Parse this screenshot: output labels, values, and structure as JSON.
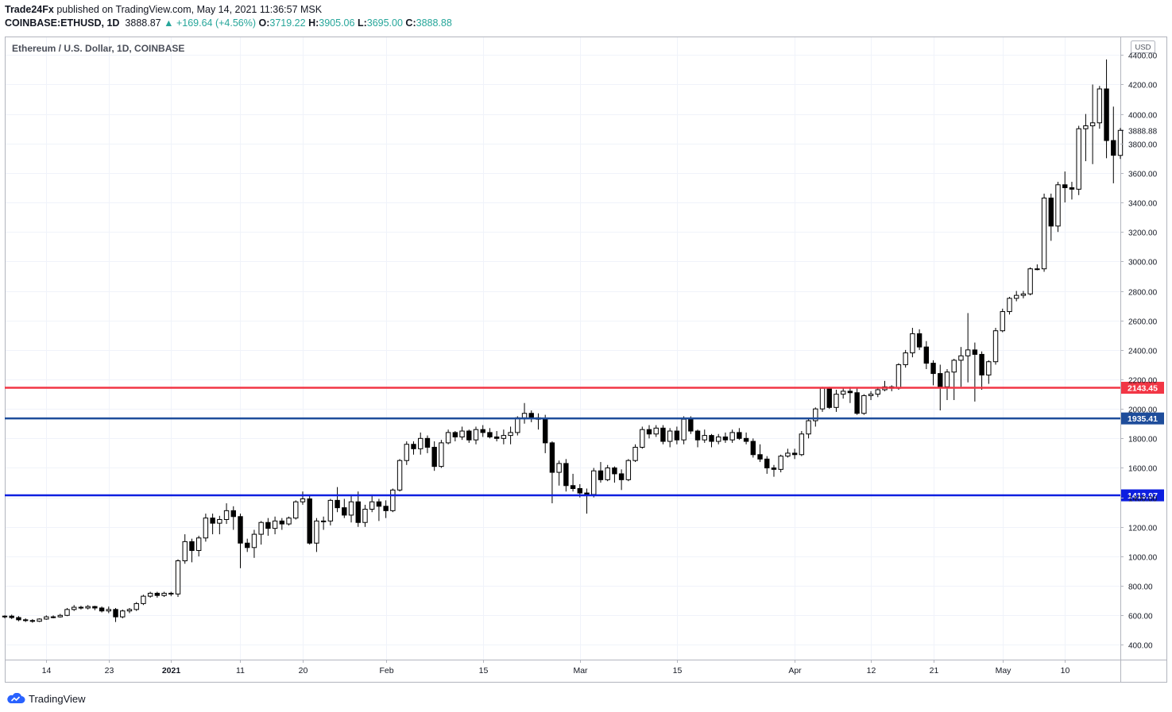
{
  "header": {
    "author": "Trade24Fx",
    "published_text": "published on TradingView.com, May 14, 2021 11:36:57 MSK",
    "symbol": "COINBASE:ETHUSD, 1D",
    "last": "3888.87",
    "change": "▲ +169.64 (+4.56%)",
    "o_label": "O:",
    "o_value": "3719.22",
    "h_label": "H:",
    "h_value": "3905.06",
    "l_label": "L:",
    "l_value": "3695.00",
    "c_label": "C:",
    "c_value": "3888.88"
  },
  "branding": {
    "name": "TradingView"
  },
  "chart_data": {
    "type": "candlestick",
    "title": "Ethereum / U.S. Dollar, 1D, COINBASE",
    "currency": "USD",
    "ylim": [
      300,
      4520
    ],
    "y_ticks": [
      400,
      600,
      800,
      1000,
      1200,
      1400,
      1600,
      1800,
      2000,
      2200,
      2400,
      2600,
      2800,
      3000,
      3200,
      3400,
      3600,
      3800,
      4000,
      4200,
      4400
    ],
    "x_range": [
      "2020-12-08",
      "2021-05-18"
    ],
    "x_ticks": [
      {
        "label": "14",
        "date": "2020-12-14"
      },
      {
        "label": "23",
        "date": "2020-12-23"
      },
      {
        "label": "2021",
        "date": "2021-01-01",
        "bold": true
      },
      {
        "label": "11",
        "date": "2021-01-11"
      },
      {
        "label": "20",
        "date": "2021-01-20"
      },
      {
        "label": "Feb",
        "date": "2021-02-01"
      },
      {
        "label": "15",
        "date": "2021-02-15"
      },
      {
        "label": "Mar",
        "date": "2021-03-01"
      },
      {
        "label": "15",
        "date": "2021-03-15"
      },
      {
        "label": "Apr",
        "date": "2021-04-01"
      },
      {
        "label": "12",
        "date": "2021-04-12"
      },
      {
        "label": "21",
        "date": "2021-04-21"
      },
      {
        "label": "May",
        "date": "2021-05-01"
      },
      {
        "label": "10",
        "date": "2021-05-10"
      }
    ],
    "last_price": {
      "value": 3888.88,
      "label": "3888.88"
    },
    "horizontal_lines": [
      {
        "value": 2143.45,
        "label": "2143.45",
        "color": "#f23645"
      },
      {
        "value": 1935.41,
        "label": "1935.41",
        "color": "#1e4d9b"
      },
      {
        "value": 1413.97,
        "label": "1413.97",
        "color": "#0d1fe0"
      }
    ],
    "start_date": "2020-12-08",
    "candles": [
      [
        590,
        600,
        580,
        595
      ],
      [
        595,
        605,
        575,
        585
      ],
      [
        585,
        595,
        560,
        570
      ],
      [
        570,
        580,
        555,
        565
      ],
      [
        565,
        575,
        550,
        560
      ],
      [
        560,
        580,
        555,
        575
      ],
      [
        575,
        600,
        570,
        590
      ],
      [
        590,
        600,
        580,
        590
      ],
      [
        590,
        610,
        585,
        600
      ],
      [
        600,
        650,
        595,
        640
      ],
      [
        640,
        670,
        630,
        655
      ],
      [
        655,
        665,
        640,
        650
      ],
      [
        650,
        670,
        640,
        660
      ],
      [
        660,
        665,
        635,
        650
      ],
      [
        650,
        660,
        620,
        630
      ],
      [
        630,
        660,
        615,
        640
      ],
      [
        640,
        650,
        555,
        590
      ],
      [
        590,
        640,
        580,
        630
      ],
      [
        630,
        650,
        615,
        640
      ],
      [
        640,
        690,
        630,
        680
      ],
      [
        680,
        740,
        670,
        730
      ],
      [
        730,
        760,
        720,
        750
      ],
      [
        750,
        760,
        720,
        735
      ],
      [
        735,
        760,
        725,
        750
      ],
      [
        750,
        760,
        730,
        745
      ],
      [
        745,
        980,
        725,
        970
      ],
      [
        970,
        1150,
        950,
        1100
      ],
      [
        1100,
        1120,
        960,
        1040
      ],
      [
        1040,
        1140,
        1000,
        1125
      ],
      [
        1125,
        1290,
        1100,
        1260
      ],
      [
        1260,
        1290,
        1150,
        1225
      ],
      [
        1225,
        1275,
        1150,
        1250
      ],
      [
        1250,
        1360,
        1220,
        1310
      ],
      [
        1310,
        1340,
        1180,
        1270
      ],
      [
        1270,
        1290,
        920,
        1090
      ],
      [
        1090,
        1120,
        1030,
        1060
      ],
      [
        1060,
        1180,
        990,
        1150
      ],
      [
        1150,
        1240,
        1080,
        1230
      ],
      [
        1230,
        1260,
        1140,
        1190
      ],
      [
        1190,
        1270,
        1150,
        1240
      ],
      [
        1240,
        1260,
        1180,
        1220
      ],
      [
        1220,
        1270,
        1210,
        1260
      ],
      [
        1260,
        1380,
        1250,
        1370
      ],
      [
        1370,
        1440,
        1350,
        1390
      ],
      [
        1390,
        1410,
        1080,
        1090
      ],
      [
        1090,
        1260,
        1030,
        1240
      ],
      [
        1240,
        1270,
        1180,
        1240
      ],
      [
        1240,
        1390,
        1210,
        1380
      ],
      [
        1380,
        1470,
        1300,
        1330
      ],
      [
        1330,
        1390,
        1260,
        1280
      ],
      [
        1280,
        1420,
        1230,
        1370
      ],
      [
        1370,
        1440,
        1200,
        1230
      ],
      [
        1230,
        1350,
        1200,
        1320
      ],
      [
        1320,
        1420,
        1300,
        1370
      ],
      [
        1370,
        1390,
        1240,
        1340
      ],
      [
        1340,
        1380,
        1260,
        1310
      ],
      [
        1310,
        1460,
        1300,
        1450
      ],
      [
        1450,
        1660,
        1440,
        1650
      ],
      [
        1650,
        1780,
        1620,
        1760
      ],
      [
        1760,
        1780,
        1690,
        1730
      ],
      [
        1730,
        1840,
        1690,
        1800
      ],
      [
        1800,
        1820,
        1700,
        1740
      ],
      [
        1740,
        1780,
        1580,
        1610
      ],
      [
        1610,
        1790,
        1600,
        1770
      ],
      [
        1770,
        1860,
        1760,
        1840
      ],
      [
        1840,
        1850,
        1780,
        1810
      ],
      [
        1810,
        1880,
        1790,
        1850
      ],
      [
        1850,
        1860,
        1770,
        1790
      ],
      [
        1790,
        1880,
        1760,
        1860
      ],
      [
        1860,
        1890,
        1810,
        1840
      ],
      [
        1840,
        1870,
        1800,
        1810
      ],
      [
        1810,
        1850,
        1780,
        1800
      ],
      [
        1800,
        1860,
        1760,
        1820
      ],
      [
        1820,
        1880,
        1760,
        1840
      ],
      [
        1840,
        1950,
        1820,
        1940
      ],
      [
        1940,
        2040,
        1900,
        1970
      ],
      [
        1970,
        1990,
        1910,
        1940
      ],
      [
        1940,
        1970,
        1860,
        1930
      ],
      [
        1930,
        1960,
        1700,
        1770
      ],
      [
        1770,
        1780,
        1360,
        1570
      ],
      [
        1570,
        1650,
        1480,
        1630
      ],
      [
        1630,
        1660,
        1440,
        1480
      ],
      [
        1480,
        1560,
        1440,
        1460
      ],
      [
        1460,
        1490,
        1400,
        1430
      ],
      [
        1430,
        1460,
        1290,
        1420
      ],
      [
        1420,
        1600,
        1400,
        1580
      ],
      [
        1580,
        1640,
        1500,
        1520
      ],
      [
        1520,
        1620,
        1510,
        1600
      ],
      [
        1600,
        1610,
        1500,
        1560
      ],
      [
        1560,
        1590,
        1450,
        1520
      ],
      [
        1520,
        1660,
        1510,
        1650
      ],
      [
        1650,
        1760,
        1640,
        1740
      ],
      [
        1740,
        1880,
        1730,
        1860
      ],
      [
        1860,
        1890,
        1800,
        1830
      ],
      [
        1830,
        1890,
        1810,
        1870
      ],
      [
        1870,
        1890,
        1760,
        1780
      ],
      [
        1780,
        1870,
        1740,
        1850
      ],
      [
        1850,
        1880,
        1760,
        1790
      ],
      [
        1790,
        1950,
        1760,
        1930
      ],
      [
        1930,
        1950,
        1830,
        1850
      ],
      [
        1850,
        1860,
        1740,
        1790
      ],
      [
        1790,
        1860,
        1770,
        1820
      ],
      [
        1820,
        1830,
        1740,
        1780
      ],
      [
        1780,
        1830,
        1760,
        1810
      ],
      [
        1810,
        1840,
        1770,
        1790
      ],
      [
        1790,
        1860,
        1770,
        1840
      ],
      [
        1840,
        1870,
        1790,
        1800
      ],
      [
        1800,
        1840,
        1760,
        1780
      ],
      [
        1780,
        1800,
        1670,
        1690
      ],
      [
        1690,
        1760,
        1640,
        1660
      ],
      [
        1660,
        1680,
        1560,
        1600
      ],
      [
        1600,
        1620,
        1540,
        1590
      ],
      [
        1590,
        1690,
        1570,
        1680
      ],
      [
        1680,
        1730,
        1670,
        1700
      ],
      [
        1700,
        1730,
        1660,
        1690
      ],
      [
        1690,
        1850,
        1680,
        1830
      ],
      [
        1830,
        1940,
        1800,
        1920
      ],
      [
        1920,
        2010,
        1880,
        2000
      ],
      [
        2000,
        2150,
        1980,
        2140
      ],
      [
        2140,
        2150,
        2000,
        2010
      ],
      [
        2010,
        2130,
        1980,
        2100
      ],
      [
        2100,
        2140,
        2070,
        2120
      ],
      [
        2120,
        2150,
        2040,
        2110
      ],
      [
        2110,
        2140,
        1960,
        1970
      ],
      [
        1970,
        2100,
        1960,
        2090
      ],
      [
        2090,
        2120,
        2060,
        2100
      ],
      [
        2100,
        2150,
        2080,
        2130
      ],
      [
        2130,
        2190,
        2120,
        2150
      ],
      [
        2150,
        2160,
        2120,
        2140
      ],
      [
        2140,
        2310,
        2130,
        2300
      ],
      [
        2300,
        2400,
        2280,
        2380
      ],
      [
        2380,
        2550,
        2350,
        2510
      ],
      [
        2510,
        2540,
        2400,
        2420
      ],
      [
        2420,
        2460,
        2270,
        2310
      ],
      [
        2310,
        2330,
        2160,
        2240
      ],
      [
        2240,
        2300,
        1990,
        2150
      ],
      [
        2150,
        2270,
        2060,
        2250
      ],
      [
        2250,
        2340,
        2060,
        2330
      ],
      [
        2330,
        2420,
        2150,
        2360
      ],
      [
        2360,
        2650,
        2180,
        2400
      ],
      [
        2400,
        2450,
        2050,
        2370
      ],
      [
        2370,
        2390,
        2130,
        2230
      ],
      [
        2230,
        2330,
        2170,
        2320
      ],
      [
        2320,
        2550,
        2300,
        2530
      ],
      [
        2530,
        2680,
        2520,
        2660
      ],
      [
        2660,
        2760,
        2640,
        2750
      ],
      [
        2750,
        2800,
        2730,
        2770
      ],
      [
        2770,
        2800,
        2750,
        2780
      ],
      [
        2780,
        2960,
        2770,
        2950
      ],
      [
        2950,
        2980,
        2940,
        2950
      ],
      [
        2950,
        3460,
        2930,
        3430
      ],
      [
        3430,
        3460,
        3140,
        3240
      ],
      [
        3240,
        3540,
        3200,
        3520
      ],
      [
        3520,
        3610,
        3400,
        3500
      ],
      [
        3500,
        3540,
        3420,
        3490
      ],
      [
        3490,
        3920,
        3450,
        3900
      ],
      [
        3900,
        4000,
        3680,
        3920
      ],
      [
        3920,
        4200,
        3660,
        3940
      ],
      [
        3940,
        4190,
        3900,
        4170
      ],
      [
        4170,
        4370,
        3700,
        3820
      ],
      [
        3820,
        4050,
        3530,
        3720
      ],
      [
        3719.22,
        3905.06,
        3695,
        3888.88
      ]
    ]
  }
}
